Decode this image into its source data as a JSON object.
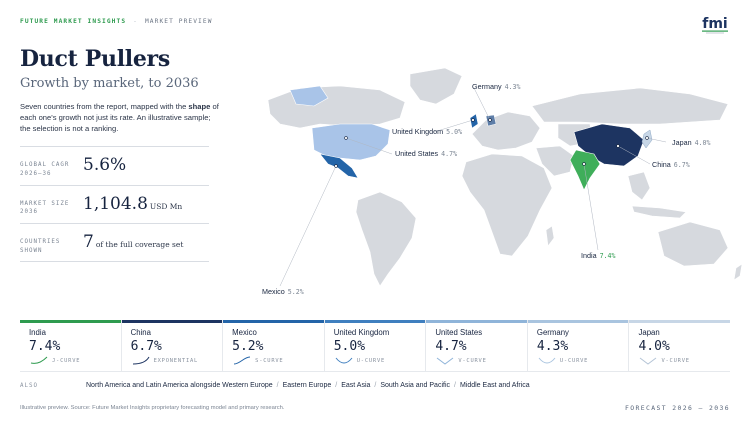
{
  "header": {
    "brand": "FUTURE MARKET INSIGHTS",
    "separator": "-",
    "section": "MARKET PREVIEW",
    "logo_text": "fmi"
  },
  "title": "Duct Pullers",
  "subtitle": "Growth by market, to 2036",
  "intro": {
    "part1": "Seven countries from the report, mapped with the ",
    "bold": "shape",
    "part2": " of each one's growth not just its rate. An illustrative sample; the selection is not a ranking."
  },
  "stats": [
    {
      "label_l1": "GLOBAL CAGR",
      "label_l2": "2026–36",
      "value": "5.6%",
      "unit": ""
    },
    {
      "label_l1": "MARKET SIZE",
      "label_l2": "2036",
      "value": "1,104.8",
      "unit": "USD Mn"
    },
    {
      "label_l1": "COUNTRIES",
      "label_l2": "SHOWN",
      "value": "7",
      "unit": "of the full coverage set"
    }
  ],
  "map_callouts": [
    {
      "key": "germany",
      "name": "Germany",
      "pct": "4.3%"
    },
    {
      "key": "uk",
      "name": "United Kingdom",
      "pct": "5.0%"
    },
    {
      "key": "us",
      "name": "United States",
      "pct": "4.7%"
    },
    {
      "key": "japan",
      "name": "Japan",
      "pct": "4.0%"
    },
    {
      "key": "china",
      "name": "China",
      "pct": "6.7%"
    },
    {
      "key": "india",
      "name": "India",
      "pct": "7.4%"
    },
    {
      "key": "mexico",
      "name": "Mexico",
      "pct": "5.2%"
    }
  ],
  "countries": [
    {
      "name": "India",
      "value": "7.4%",
      "curve": "J-CURVE",
      "color": "#2e9b4f"
    },
    {
      "name": "China",
      "value": "6.7%",
      "curve": "EXPONENTIAL",
      "color": "#1d3461"
    },
    {
      "name": "Mexico",
      "value": "5.2%",
      "curve": "S-CURVE",
      "color": "#2364a8"
    },
    {
      "name": "United Kingdom",
      "value": "5.0%",
      "curve": "U-CURVE",
      "color": "#3f7fbf"
    },
    {
      "name": "United States",
      "value": "4.7%",
      "curve": "V-CURVE",
      "color": "#8fb4d9"
    },
    {
      "name": "Germany",
      "value": "4.3%",
      "curve": "U-CURVE",
      "color": "#a9c4df"
    },
    {
      "name": "Japan",
      "value": "4.0%",
      "curve": "V-CURVE",
      "color": "#c7d6e6"
    }
  ],
  "also": {
    "label": "ALSO",
    "regions": [
      "North America and Latin America alongside Western Europe",
      "Eastern Europe",
      "East Asia",
      "South Asia and Pacific",
      "Middle East and Africa"
    ],
    "separator": "/"
  },
  "footer": {
    "note": "Illustrative preview. Source: Future Market Insights proprietary forecasting model and primary research.",
    "forecast": "FORECAST 2026 – 2036"
  },
  "colors": {
    "land": "#d6d9de",
    "us": "#a9c4e8",
    "mexico": "#2364a8",
    "china": "#1d3461",
    "india": "#3fae5a",
    "accent_green": "#2e9b4f"
  }
}
